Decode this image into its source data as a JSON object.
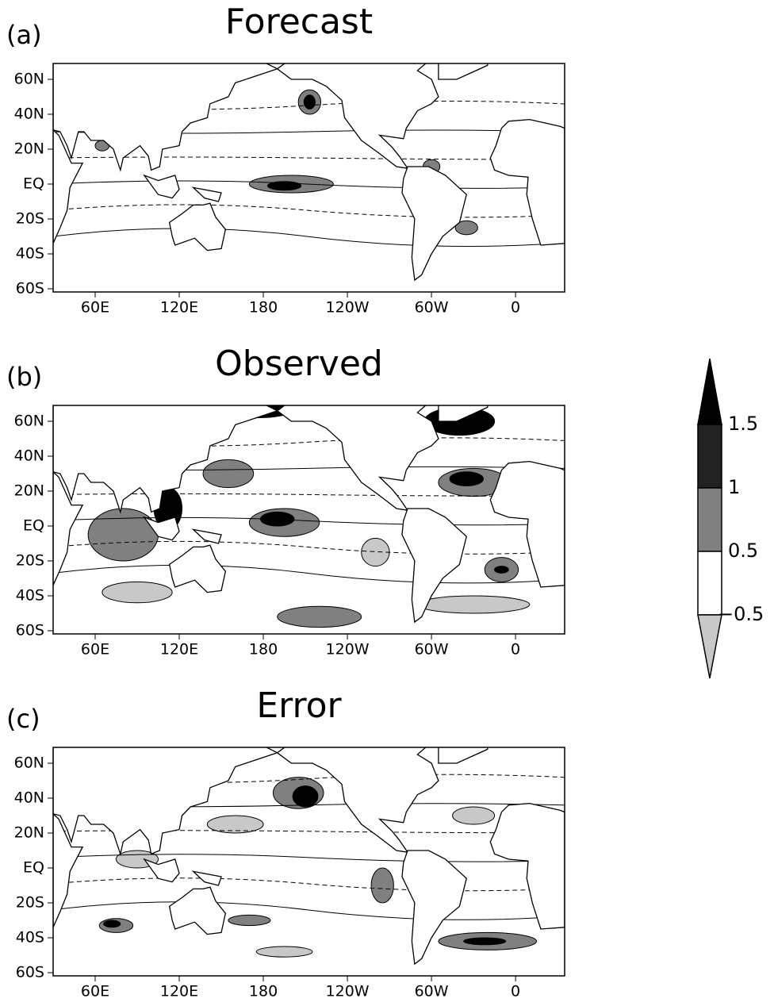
{
  "panels": [
    {
      "label": "(a)",
      "title": "Forecast"
    },
    {
      "label": "(b)",
      "title": "Observed"
    },
    {
      "label": "(c)",
      "title": "Error"
    }
  ],
  "axes": {
    "lat": [
      "60N",
      "40N",
      "20N",
      "EQ",
      "20S",
      "40S",
      "60S"
    ],
    "lon": [
      "60E",
      "120E",
      "180",
      "120W",
      "60W",
      "0"
    ]
  },
  "colorbar": {
    "labels": [
      "1.5",
      "1",
      "0.5",
      "−0.5"
    ]
  }
}
